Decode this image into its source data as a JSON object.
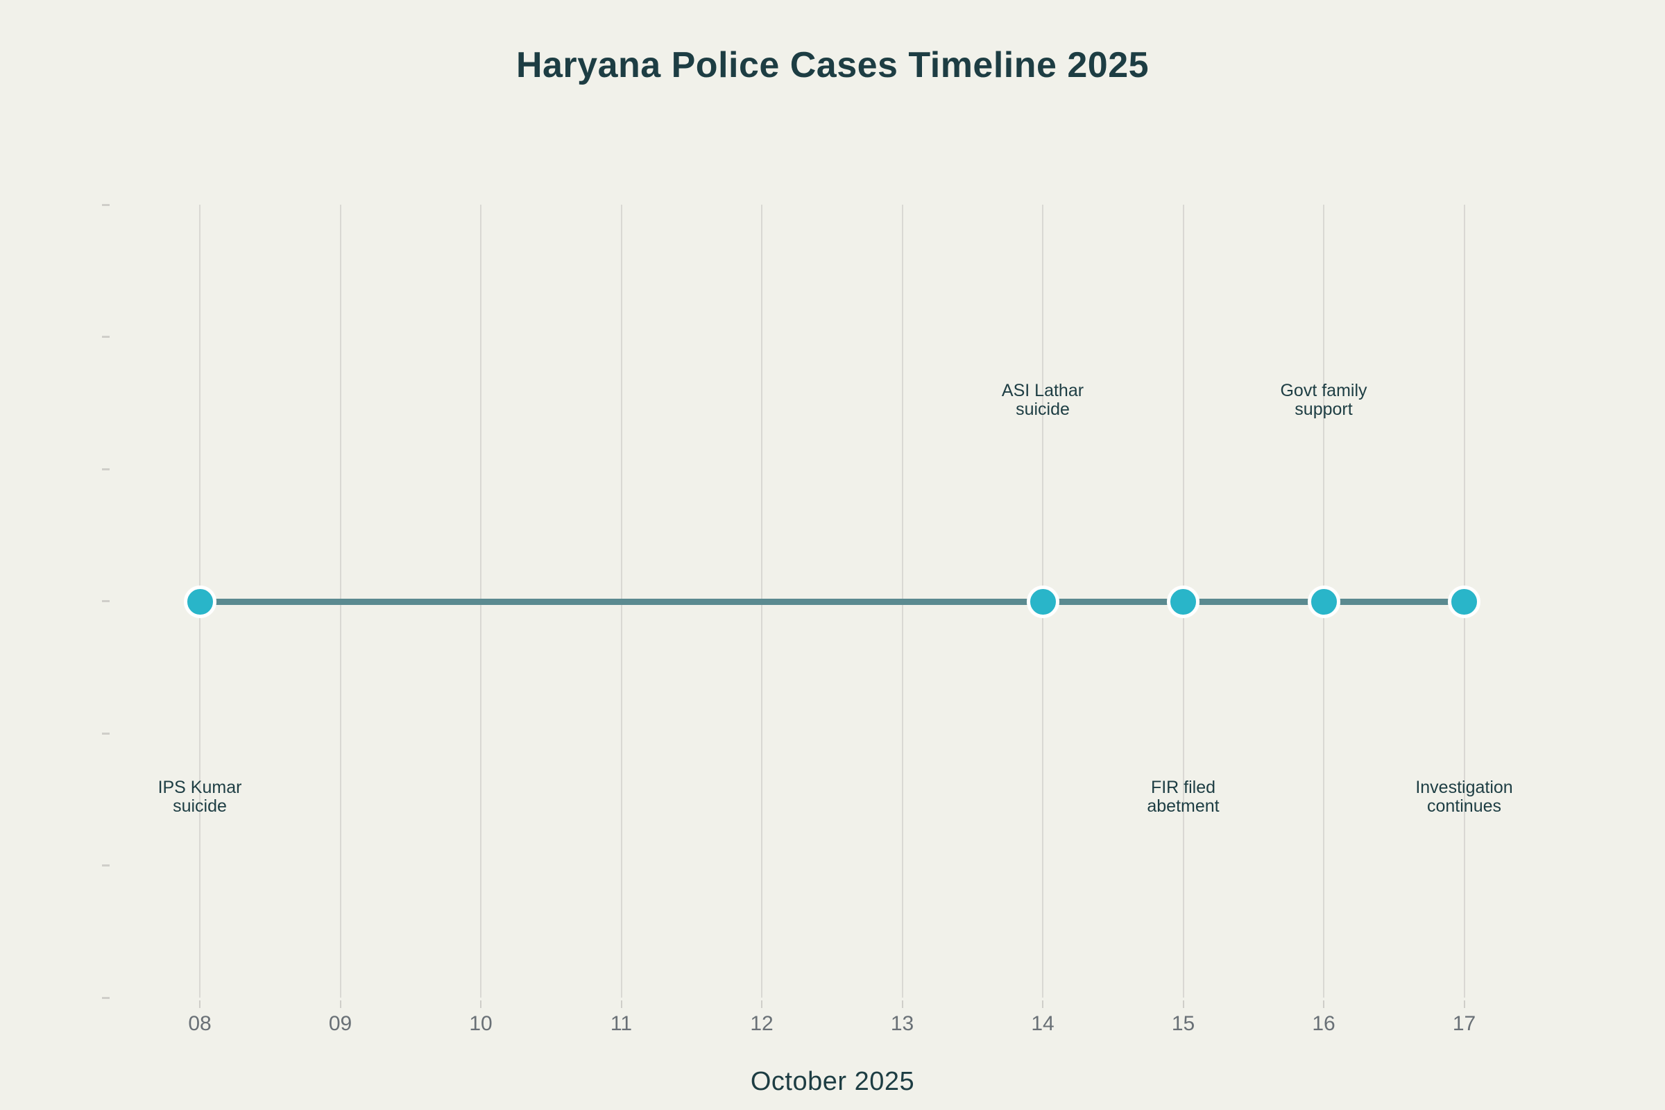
{
  "chart_data": {
    "type": "line",
    "title": "Haryana Police Cases Timeline 2025",
    "xlabel": "October 2025",
    "ylabel": "",
    "x_tick_labels": [
      "08",
      "09",
      "10",
      "11",
      "12",
      "13",
      "14",
      "15",
      "16",
      "17"
    ],
    "x_range": [
      8,
      17
    ],
    "grid": {
      "vertical": true,
      "horizontal": false
    },
    "y_axis": {
      "tick_count": 7,
      "tick_labels_visible": false
    },
    "legend": "none",
    "series": [
      {
        "name": "timeline",
        "x": [
          8,
          14,
          15,
          16,
          17
        ],
        "y": [
          0,
          0,
          0,
          0,
          0
        ]
      }
    ],
    "events": [
      {
        "day": "08",
        "x": 8,
        "label": "IPS Kumar suicide",
        "lines": [
          "IPS Kumar",
          "suicide"
        ],
        "label_position": "below"
      },
      {
        "day": "14",
        "x": 14,
        "label": "ASI Lathar suicide",
        "lines": [
          "ASI Lathar",
          "suicide"
        ],
        "label_position": "above"
      },
      {
        "day": "15",
        "x": 15,
        "label": "FIR filed abetment",
        "lines": [
          "FIR filed",
          "abetment"
        ],
        "label_position": "below"
      },
      {
        "day": "16",
        "x": 16,
        "label": "Govt family support",
        "lines": [
          "Govt family",
          "support"
        ],
        "label_position": "above"
      },
      {
        "day": "17",
        "x": 17,
        "label": "Investigation continues",
        "lines": [
          "Investigation",
          "continues"
        ],
        "label_position": "below"
      }
    ],
    "colors": {
      "background": "#f1f1ea",
      "title_text": "#1d3d43",
      "annotation_text": "#1d3d43",
      "axis_tick_text": "#697076",
      "axis_title_text": "#1d3d43",
      "marker": "#29b5c9",
      "marker_border": "#ffffff",
      "line": "#5b8a90",
      "gridline": "#d9d8d3",
      "tick": "#cfcec9"
    }
  }
}
